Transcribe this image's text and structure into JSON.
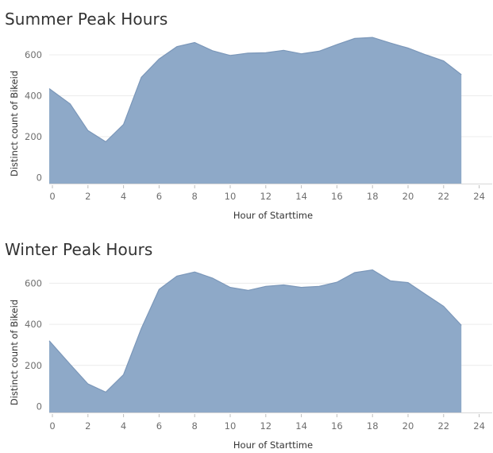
{
  "chart_data": [
    {
      "type": "area",
      "title": "Summer Peak Hours",
      "xlabel": "Hour of Starttime",
      "ylabel": "Distinct count of Bikeid",
      "x": [
        0,
        1,
        2,
        3,
        4,
        5,
        6,
        7,
        8,
        9,
        10,
        11,
        12,
        13,
        14,
        15,
        16,
        17,
        18,
        19,
        20,
        21,
        22,
        23
      ],
      "values": [
        435,
        360,
        230,
        175,
        260,
        490,
        580,
        640,
        660,
        620,
        597,
        608,
        610,
        622,
        605,
        618,
        650,
        680,
        685,
        658,
        633,
        600,
        570,
        503
      ],
      "xlim": [
        0,
        24
      ],
      "ylim": [
        0,
        700
      ],
      "xticks": [
        "0",
        "2",
        "4",
        "6",
        "8",
        "10",
        "12",
        "14",
        "16",
        "18",
        "20",
        "22",
        "24"
      ],
      "yticks": [
        "0",
        "200",
        "400",
        "600"
      ],
      "grid": true,
      "color": "#8ea9c8",
      "line_color": "#7b97b9"
    },
    {
      "type": "area",
      "title": "Winter Peak Hours",
      "xlabel": "Hour of Starttime",
      "ylabel": "Distinct count of Bikeid",
      "x": [
        0,
        1,
        2,
        3,
        4,
        5,
        6,
        7,
        8,
        9,
        10,
        11,
        12,
        13,
        14,
        15,
        16,
        17,
        18,
        19,
        20,
        21,
        22,
        23
      ],
      "values": [
        320,
        205,
        110,
        70,
        155,
        380,
        570,
        635,
        655,
        625,
        580,
        565,
        585,
        592,
        580,
        585,
        605,
        652,
        665,
        612,
        603,
        545,
        488,
        395
      ],
      "xlim": [
        0,
        24
      ],
      "ylim": [
        0,
        700
      ],
      "xticks": [
        "0",
        "2",
        "4",
        "6",
        "8",
        "10",
        "12",
        "14",
        "16",
        "18",
        "20",
        "22",
        "24"
      ],
      "yticks": [
        "0",
        "200",
        "400",
        "600"
      ],
      "grid": true,
      "color": "#8ea9c8",
      "line_color": "#7b97b9"
    }
  ]
}
